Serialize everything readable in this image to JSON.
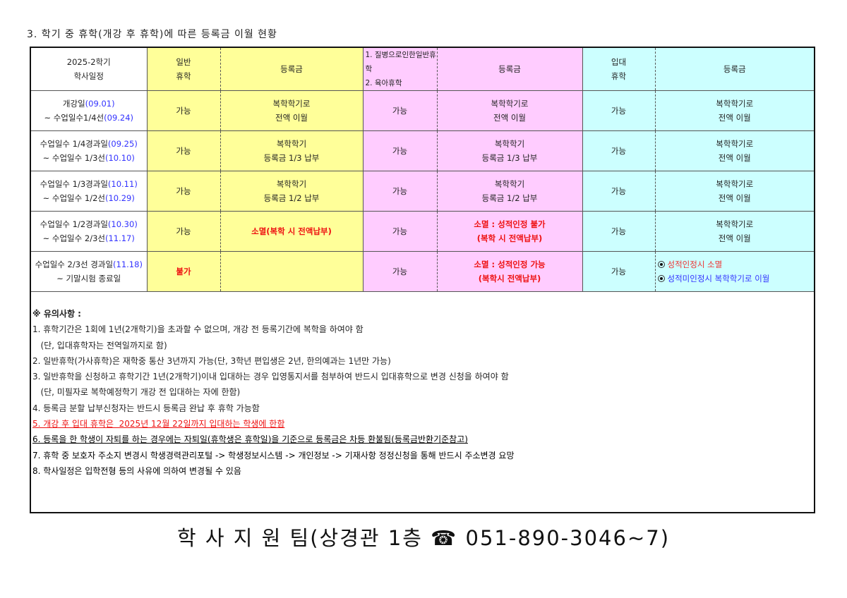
{
  "title": "3. 학기 중 휴학(개강 후 휴학)에 따른 등록금 이월 현황",
  "header": {
    "schedule": [
      "2025-2학기",
      "학사일정"
    ],
    "general": [
      "일반",
      "휴학"
    ],
    "fee1": "등록금",
    "illness": [
      "1. 질병으로인한일반휴학",
      "2. 육아휴학"
    ],
    "fee2": "등록금",
    "military": [
      "입대",
      "휴학"
    ],
    "fee3": "등록금"
  },
  "rows": [
    {
      "s1": "개강일",
      "d1": "(09.01)",
      "s2": "~ 수업일수1/4선",
      "d2": "(09.24)",
      "g": "가능",
      "f1": [
        "복학학기로",
        "전액 이월"
      ],
      "i": "가능",
      "f2": [
        "복학학기로",
        "전액 이월"
      ],
      "m": "가능",
      "f3": [
        "복학학기로",
        "전액 이월"
      ]
    },
    {
      "s1": "수업일수 1/4경과일",
      "d1": "(09.25)",
      "s2": "~ 수업일수 1/3선",
      "d2": "(10.10)",
      "g": "가능",
      "f1": [
        "복학학기",
        "등록금 1/3 납부"
      ],
      "i": "가능",
      "f2": [
        "복학학기",
        "등록금 1/3 납부"
      ],
      "m": "가능",
      "f3": [
        "복학학기로",
        "전액 이월"
      ]
    },
    {
      "s1": "수업일수 1/3경과일",
      "d1": "(10.11)",
      "s2": "~ 수업일수 1/2선",
      "d2": "(10.29)",
      "g": "가능",
      "f1": [
        "복학학기",
        "등록금 1/2 납부"
      ],
      "i": "가능",
      "f2": [
        "복학학기",
        "등록금 1/2 납부"
      ],
      "m": "가능",
      "f3": [
        "복학학기로",
        "전액 이월"
      ]
    },
    {
      "s1": "수업일수 1/2경과일",
      "d1": "(10.30)",
      "s2": "~ 수업일수 2/3선",
      "d2": "(11.17)",
      "g": "가능",
      "f1": [
        "소멸(복학 시 전액납부)",
        ""
      ],
      "i": "가능",
      "f2": [
        "소멸 : 성적인정 불가",
        "(복학 시 전액납부)"
      ],
      "m": "가능",
      "f3": [
        "복학학기로",
        "전액 이월"
      ]
    },
    {
      "s1": "수업일수 2/3선 경과일",
      "d1": "(11.18)",
      "s2": "~ 기말시험 종료일",
      "d2": "",
      "g": "불가",
      "f1": [
        "",
        ""
      ],
      "i": "가능",
      "f2": [
        "소멸 : 성적인정 가능",
        "(복학시 전액납부)"
      ],
      "m": "가능",
      "f3": [
        "성적인정시 소멸",
        "성적미인정시 복학학기로 이월"
      ]
    }
  ],
  "notes": {
    "heading": "※ 유의사항 :",
    "items": [
      "1. 휴학기간은 1회에 1년(2개학기)을 초과할 수 없으며, 개강 전 등록기간에 복학을 하여야 함",
      "   (단, 입대휴학자는 전역일까지로 함)",
      "2. 일반휴학(가사휴학)은 재학중 통산 3년까지 가능(단, 3학년 편입생은 2년, 한의예과는 1년만 가능)",
      "3. 일반휴학을 신청하고 휴학기간 1년(2개학기)이내 입대하는 경우 입영통지서를 첨부하여 반드시 입대휴학으로 변경 신청을 하여야 함",
      "   (단, 미필자로 복학예정학기 개강 전 입대하는 자에 한함)",
      "4. 등록금 분할 납부신청자는 반드시 등록금 완납 후 휴학 가능함",
      "5. 개강 후 입대 휴학은  2025년 12월 22일까지 입대하는 학생에 한함",
      "6. 등록을 한 학생이 자퇴를 하는 경우에는 자퇴일(휴학생은 휴학일)을 기준으로 등록금은 차등 환불됨(등록금반환기준참고)",
      "7. 휴학 중 보호자 주소지 변경시 학생경력관리포털 -> 학생정보시스템 -> 개인정보 -> 기재사항 정정신청을 통해 반드시 주소변경 요망",
      "8. 학사일정은 입학전형 등의 사유에 의하여 변경될 수 있음"
    ]
  },
  "footer": "학 사 지 원 팀(상경관 1층 ☎ 051-890-3046~7)",
  "colors": {
    "general": "#ffff99",
    "illness": "#ffccff",
    "military": "#ccffff",
    "date": "#3333ff",
    "alert": "#ee1111"
  }
}
